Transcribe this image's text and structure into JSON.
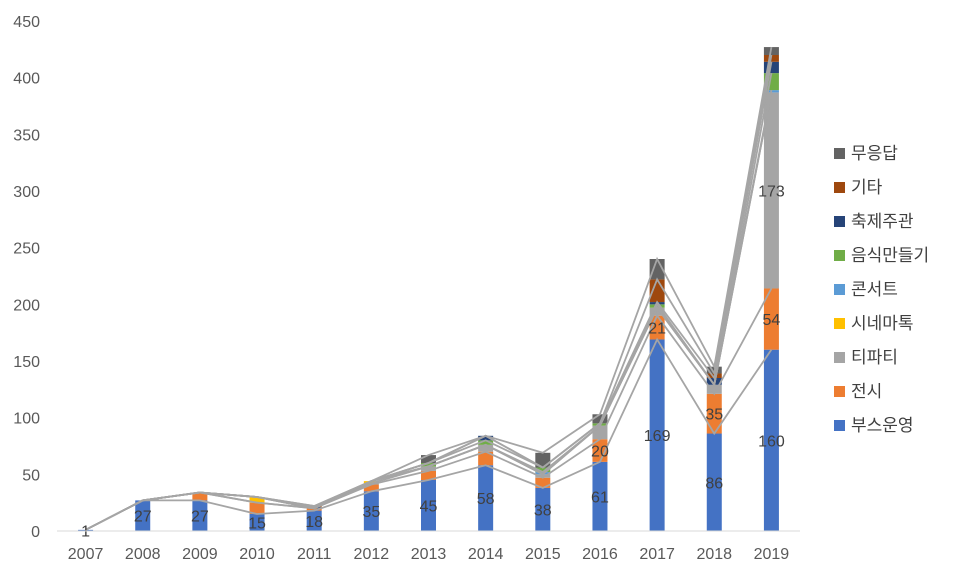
{
  "chart_data": {
    "type": "bar",
    "stacked": true,
    "categories": [
      "2007",
      "2008",
      "2009",
      "2010",
      "2011",
      "2012",
      "2013",
      "2014",
      "2015",
      "2016",
      "2017",
      "2018",
      "2019"
    ],
    "ylim": [
      0,
      450
    ],
    "yticks": [
      0,
      50,
      100,
      150,
      200,
      250,
      300,
      350,
      400,
      450
    ],
    "grid": false,
    "legend_position": "right",
    "series": [
      {
        "name": "부스운영",
        "color": "#4472C4",
        "values": [
          1,
          27,
          27,
          15,
          18,
          35,
          45,
          58,
          38,
          61,
          169,
          86,
          160
        ],
        "labels": [
          "1",
          "27",
          "27",
          "15",
          "18",
          "35",
          "45",
          "58",
          "38",
          "61",
          "169",
          "86",
          "160"
        ]
      },
      {
        "name": "전시",
        "color": "#ED7D31",
        "values": [
          0,
          0,
          7,
          10,
          2,
          6,
          8,
          12,
          9,
          20,
          21,
          35,
          54
        ],
        "labels": [
          "",
          "",
          "",
          "",
          "",
          "",
          "",
          "",
          "",
          "20",
          "21",
          "35",
          "54"
        ]
      },
      {
        "name": "티파티",
        "color": "#A5A5A5",
        "values": [
          0,
          0,
          0,
          0,
          0,
          1,
          4,
          6,
          3,
          12,
          7,
          8,
          173
        ],
        "labels": [
          "",
          "",
          "",
          "",
          "",
          "",
          "",
          "",
          "",
          "",
          "",
          "",
          "173"
        ]
      },
      {
        "name": "시네마톡",
        "color": "#FFC000",
        "values": [
          0,
          0,
          0,
          5,
          0,
          2,
          0,
          0,
          0,
          0,
          0,
          0,
          0
        ],
        "labels": []
      },
      {
        "name": "콘서트",
        "color": "#5B9BD5",
        "values": [
          0,
          0,
          0,
          0,
          0,
          0,
          0,
          0,
          2,
          0,
          0,
          0,
          2
        ],
        "labels": []
      },
      {
        "name": "음식만들기",
        "color": "#70AD47",
        "values": [
          0,
          0,
          0,
          0,
          0,
          0,
          3,
          4,
          4,
          2,
          3,
          0,
          15
        ],
        "labels": []
      },
      {
        "name": "축제주관",
        "color": "#264478",
        "values": [
          0,
          0,
          0,
          0,
          1,
          0,
          0,
          4,
          0,
          0,
          2,
          6,
          10
        ],
        "labels": []
      },
      {
        "name": "기타",
        "color": "#9E480E",
        "values": [
          0,
          0,
          0,
          0,
          1,
          0,
          0,
          0,
          0,
          0,
          20,
          4,
          6
        ],
        "labels": []
      },
      {
        "name": "무응답",
        "color": "#636363",
        "values": [
          0,
          0,
          0,
          0,
          0,
          0,
          7,
          0,
          13,
          8,
          18,
          6,
          7
        ],
        "labels": []
      }
    ],
    "series_lines_color": "#A5A5A5"
  }
}
